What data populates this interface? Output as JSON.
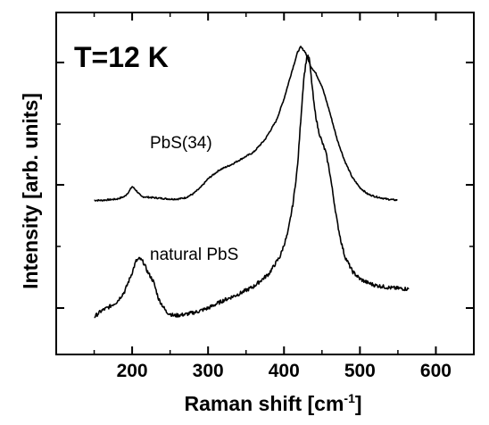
{
  "chart_data": {
    "type": "line",
    "title": "",
    "xlabel": "Raman shift [cm",
    "xlabel_sup": "-1",
    "xlabel_suffix": "]",
    "ylabel": "Intensity [arb. units]",
    "xlim": [
      100,
      650
    ],
    "xticks": [
      200,
      300,
      400,
      500,
      600
    ],
    "y_tick_labels_shown": false,
    "grid": false,
    "annotations": [
      "T=12 K"
    ],
    "series": [
      {
        "name": "PbS(34)",
        "x": [
          150,
          160,
          170,
          180,
          190,
          196,
          200,
          205,
          212,
          220,
          230,
          240,
          250,
          260,
          270,
          280,
          290,
          300,
          315,
          330,
          345,
          360,
          375,
          390,
          400,
          410,
          418,
          422,
          428,
          435,
          442,
          450,
          460,
          470,
          480,
          490,
          500,
          510,
          520,
          535,
          550
        ],
        "y": [
          0.92,
          0.92,
          0.925,
          0.93,
          0.95,
          0.99,
          1.03,
          1.0,
          0.95,
          0.945,
          0.94,
          0.935,
          0.93,
          0.93,
          0.94,
          0.97,
          1.02,
          1.09,
          1.16,
          1.2,
          1.25,
          1.3,
          1.4,
          1.55,
          1.72,
          1.93,
          2.09,
          2.13,
          2.09,
          1.98,
          1.92,
          1.82,
          1.62,
          1.4,
          1.23,
          1.1,
          1.02,
          0.97,
          0.95,
          0.93,
          0.92
        ]
      },
      {
        "name": "natural PbS",
        "x": [
          150,
          160,
          170,
          180,
          190,
          200,
          205,
          210,
          215,
          220,
          228,
          235,
          245,
          255,
          270,
          285,
          300,
          320,
          340,
          360,
          380,
          395,
          405,
          412,
          418,
          422,
          426,
          430,
          433,
          436,
          440,
          445,
          450,
          455,
          460,
          465,
          470,
          475,
          480,
          490,
          500,
          510,
          520,
          540,
          565
        ],
        "y": [
          0.0,
          0.05,
          0.08,
          0.12,
          0.2,
          0.35,
          0.44,
          0.46,
          0.43,
          0.36,
          0.28,
          0.14,
          0.04,
          0.01,
          0.02,
          0.04,
          0.07,
          0.13,
          0.18,
          0.24,
          0.34,
          0.48,
          0.66,
          0.9,
          1.2,
          1.55,
          1.88,
          2.05,
          2.05,
          1.88,
          1.65,
          1.48,
          1.38,
          1.3,
          1.15,
          0.95,
          0.75,
          0.6,
          0.48,
          0.36,
          0.3,
          0.27,
          0.25,
          0.23,
          0.22
        ]
      }
    ]
  }
}
